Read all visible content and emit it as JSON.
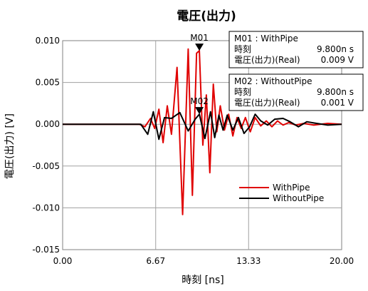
{
  "chart_data": {
    "type": "line",
    "title": "電圧(出力)",
    "xlabel": "時刻 [ns]",
    "ylabel": "電圧(出力) [V]",
    "xlim": [
      0,
      20
    ],
    "ylim": [
      -0.015,
      0.01
    ],
    "x_ticks": [
      "0.00",
      "6.67",
      "13.33",
      "20.00"
    ],
    "x_tick_values": [
      0,
      6.67,
      13.33,
      20
    ],
    "y_ticks": [
      "0.010",
      "0.005",
      "0.000",
      "-0.005",
      "-0.010",
      "-0.015"
    ],
    "y_tick_values": [
      0.01,
      0.005,
      0,
      -0.005,
      -0.01,
      -0.015
    ],
    "grid": true,
    "legend_position": "lower-right",
    "series": [
      {
        "name": "WithPipe",
        "color": "#e00000",
        "x": [
          0,
          4.5,
          5.5,
          5.9,
          6.3,
          6.6,
          6.9,
          7.2,
          7.5,
          7.8,
          8.2,
          8.6,
          9.0,
          9.3,
          9.6,
          9.8,
          10.05,
          10.3,
          10.55,
          10.8,
          11.05,
          11.3,
          11.6,
          11.9,
          12.2,
          12.5,
          12.8,
          13.1,
          13.45,
          13.8,
          14.2,
          14.6,
          15.0,
          15.4,
          15.8,
          16.2,
          16.7,
          17.3,
          18.0,
          19.0,
          20.0
        ],
        "y": [
          0,
          0,
          0,
          -0.0003,
          0.0007,
          -0.0005,
          0.0018,
          -0.0022,
          0.0022,
          -0.0012,
          0.0068,
          -0.0108,
          0.009,
          -0.0085,
          0.0085,
          0.0088,
          -0.0025,
          0.0035,
          -0.0058,
          0.0048,
          -0.0009,
          0.0022,
          -0.0007,
          0.0012,
          -0.0014,
          0.0008,
          -0.0005,
          0.0008,
          -0.0009,
          0.0008,
          -0.0002,
          0.0004,
          -0.0003,
          0.0004,
          -0.0001,
          0.0002,
          -0.0001,
          0.0001,
          -0.0001,
          0.0001,
          0
        ]
      },
      {
        "name": "WithoutPipe",
        "color": "#000000",
        "x": [
          0,
          4.5,
          5.6,
          6.1,
          6.5,
          6.9,
          7.3,
          7.8,
          8.4,
          9.0,
          9.5,
          9.8,
          10.2,
          10.6,
          10.9,
          11.2,
          11.5,
          11.8,
          12.2,
          12.6,
          13.0,
          13.4,
          13.8,
          14.2,
          14.7,
          15.2,
          15.8,
          16.3,
          16.9,
          17.5,
          18.2,
          19.0,
          20.0
        ],
        "y": [
          0,
          0,
          0,
          -0.0012,
          0.0015,
          -0.0018,
          0.0008,
          0.0007,
          0.0014,
          -0.0008,
          0.0006,
          0.0012,
          -0.0017,
          0.0015,
          -0.0016,
          0.0011,
          -0.0007,
          0.0011,
          -0.0007,
          0.0008,
          -0.0011,
          -0.0003,
          0.0012,
          0.0004,
          -0.0001,
          0.0006,
          0.0007,
          0.0003,
          -0.0003,
          0.0003,
          0.0001,
          -0.0001,
          0
        ]
      }
    ],
    "markers": [
      {
        "label": "M01",
        "series": "WithPipe",
        "x": 9.8,
        "y": 0.0088,
        "box": {
          "name": "M01 : WithPipe",
          "time_label": "時刻",
          "time_value": "9.800n s",
          "value_label": "電圧(出力)(Real)",
          "value_value": "0.009 V"
        }
      },
      {
        "label": "M02",
        "series": "WithoutPipe",
        "x": 9.8,
        "y": 0.0012,
        "box": {
          "name": "M02 : WithoutPipe",
          "time_label": "時刻",
          "time_value": "9.800n s",
          "value_label": "電圧(出力)(Real)",
          "value_value": "0.001 V"
        }
      }
    ]
  }
}
